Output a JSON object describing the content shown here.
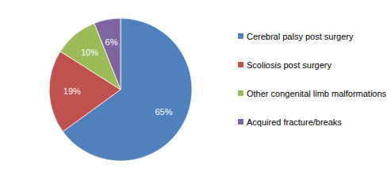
{
  "chart_data": {
    "type": "pie",
    "categories": [
      "Cerebral palsy post surgery",
      "Scoliosis post surgery",
      "Other congenital limb malformations",
      "Acquired fracture/breaks"
    ],
    "values": [
      65,
      19,
      10,
      6
    ],
    "value_labels": [
      "65%",
      "19%",
      "10%",
      "6%"
    ],
    "colors": [
      "#4f81bd",
      "#c0504d",
      "#9bbb59",
      "#8064a2"
    ],
    "data_labels": true,
    "legend": "right"
  }
}
